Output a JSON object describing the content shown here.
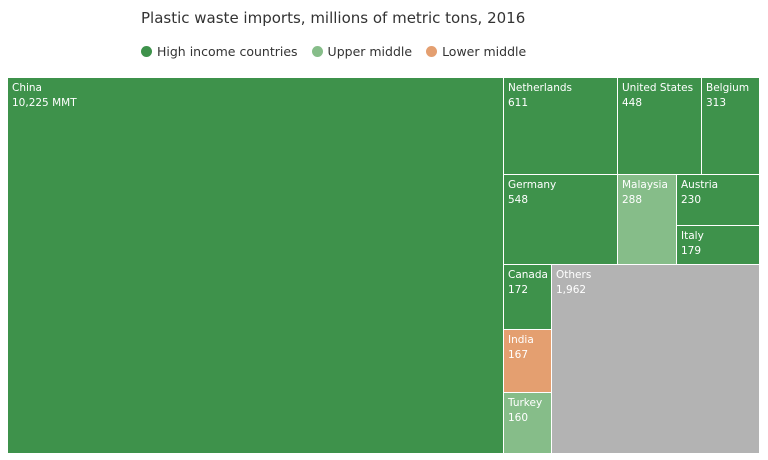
{
  "chart_data": {
    "type": "treemap",
    "title": "Plastic waste imports, millions of metric tons, 2016",
    "unit_suffix_first": "MMT",
    "legend": [
      {
        "label": "High income countries",
        "color": "#3e924b"
      },
      {
        "label": "Upper middle",
        "color": "#86bd89"
      },
      {
        "label": "Lower middle",
        "color": "#e49f70"
      }
    ],
    "other_color": "#b3b3b3",
    "items": [
      {
        "name": "China",
        "value": 10225,
        "label": "10,225 MMT",
        "group": "High income countries"
      },
      {
        "name": "Netherlands",
        "value": 611,
        "label": "611",
        "group": "High income countries"
      },
      {
        "name": "United States",
        "value": 448,
        "label": "448",
        "group": "High income countries"
      },
      {
        "name": "Belgium",
        "value": 313,
        "label": "313",
        "group": "High income countries"
      },
      {
        "name": "Germany",
        "value": 548,
        "label": "548",
        "group": "High income countries"
      },
      {
        "name": "Malaysia",
        "value": 288,
        "label": "288",
        "group": "Upper middle"
      },
      {
        "name": "Austria",
        "value": 230,
        "label": "230",
        "group": "High income countries"
      },
      {
        "name": "Italy",
        "value": 179,
        "label": "179",
        "group": "High income countries"
      },
      {
        "name": "Canada",
        "value": 172,
        "label": "172",
        "group": "High income countries"
      },
      {
        "name": "India",
        "value": 167,
        "label": "167",
        "group": "Lower middle"
      },
      {
        "name": "Turkey",
        "value": 160,
        "label": "160",
        "group": "Upper middle"
      },
      {
        "name": "Others",
        "value": 1962,
        "label": "1,962",
        "group": "Others"
      }
    ]
  }
}
